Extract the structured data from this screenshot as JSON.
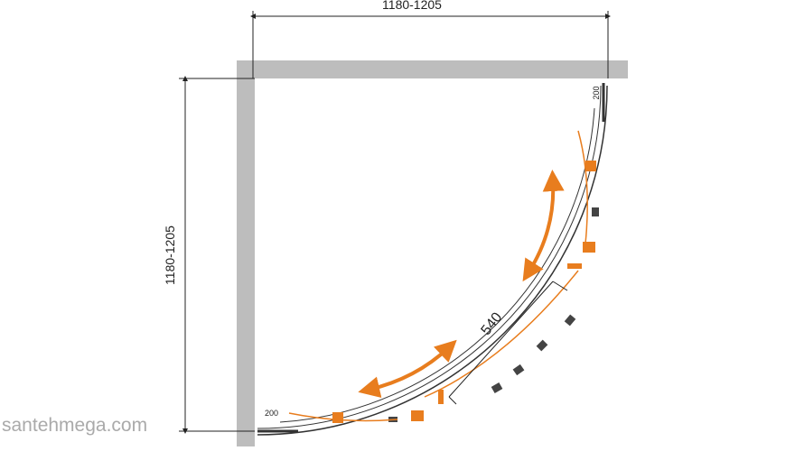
{
  "dimensions": {
    "width": "1180-1205",
    "depth": "1180-1205",
    "door_opening": "540",
    "profile_top": "200",
    "profile_bottom": "200"
  },
  "watermark": "santehmega.com"
}
